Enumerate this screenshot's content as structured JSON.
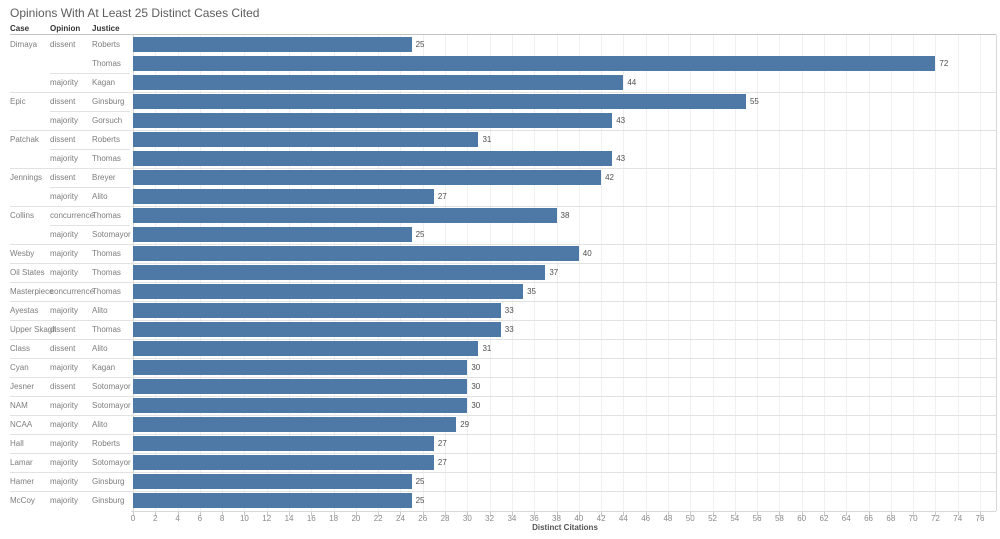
{
  "title": "Opinions With At Least 25 Distinct Cases Cited",
  "columns": {
    "case": "Case",
    "opinion": "Opinion",
    "justice": "Justice"
  },
  "axis": {
    "title": "Distinct Citations",
    "min": 0,
    "max": 76,
    "tick_step": 2
  },
  "colors": {
    "bar": "#4e79a7",
    "gridline": "#f0f0f0",
    "separator": "#e2e2e2",
    "axis_line": "#d8d8d8",
    "title_text": "#5c5c5c",
    "header_text": "#343434",
    "row_label_text": "#7d7d7d",
    "value_text": "#4f4f4f",
    "tick_text": "#8a8a8a"
  },
  "chart_data": {
    "type": "bar",
    "orientation": "horizontal",
    "title": "Opinions With At Least 25 Distinct Cases Cited",
    "xlabel": "Distinct Citations",
    "xlim": [
      0,
      76
    ],
    "x_tick_step": 2,
    "grid": true,
    "rows": [
      {
        "case": "Dimaya",
        "opinion": "dissent",
        "justice": "Roberts",
        "value": 25
      },
      {
        "case": "Dimaya",
        "opinion": "dissent",
        "justice": "Thomas",
        "value": 72
      },
      {
        "case": "Dimaya",
        "opinion": "majority",
        "justice": "Kagan",
        "value": 44
      },
      {
        "case": "Epic",
        "opinion": "dissent",
        "justice": "Ginsburg",
        "value": 55
      },
      {
        "case": "Epic",
        "opinion": "majority",
        "justice": "Gorsuch",
        "value": 43
      },
      {
        "case": "Patchak",
        "opinion": "dissent",
        "justice": "Roberts",
        "value": 31
      },
      {
        "case": "Patchak",
        "opinion": "majority",
        "justice": "Thomas",
        "value": 43
      },
      {
        "case": "Jennings",
        "opinion": "dissent",
        "justice": "Breyer",
        "value": 42
      },
      {
        "case": "Jennings",
        "opinion": "majority",
        "justice": "Alito",
        "value": 27
      },
      {
        "case": "Collins",
        "opinion": "concurrence",
        "justice": "Thomas",
        "value": 38
      },
      {
        "case": "Collins",
        "opinion": "majority",
        "justice": "Sotomayor",
        "value": 25
      },
      {
        "case": "Wesby",
        "opinion": "majority",
        "justice": "Thomas",
        "value": 40
      },
      {
        "case": "Oil States",
        "opinion": "majority",
        "justice": "Thomas",
        "value": 37
      },
      {
        "case": "Masterpiece",
        "opinion": "concurrence",
        "justice": "Thomas",
        "value": 35
      },
      {
        "case": "Ayestas",
        "opinion": "majority",
        "justice": "Alito",
        "value": 33
      },
      {
        "case": "Upper Skagit",
        "opinion": "dissent",
        "justice": "Thomas",
        "value": 33
      },
      {
        "case": "Class",
        "opinion": "dissent",
        "justice": "Alito",
        "value": 31
      },
      {
        "case": "Cyan",
        "opinion": "majority",
        "justice": "Kagan",
        "value": 30
      },
      {
        "case": "Jesner",
        "opinion": "dissent",
        "justice": "Sotomayor",
        "value": 30
      },
      {
        "case": "NAM",
        "opinion": "majority",
        "justice": "Sotomayor",
        "value": 30
      },
      {
        "case": "NCAA",
        "opinion": "majority",
        "justice": "Alito",
        "value": 29
      },
      {
        "case": "Hall",
        "opinion": "majority",
        "justice": "Roberts",
        "value": 27
      },
      {
        "case": "Lamar",
        "opinion": "majority",
        "justice": "Sotomayor",
        "value": 27
      },
      {
        "case": "Hamer",
        "opinion": "majority",
        "justice": "Ginsburg",
        "value": 25
      },
      {
        "case": "McCoy",
        "opinion": "majority",
        "justice": "Ginsburg",
        "value": 25
      }
    ]
  }
}
